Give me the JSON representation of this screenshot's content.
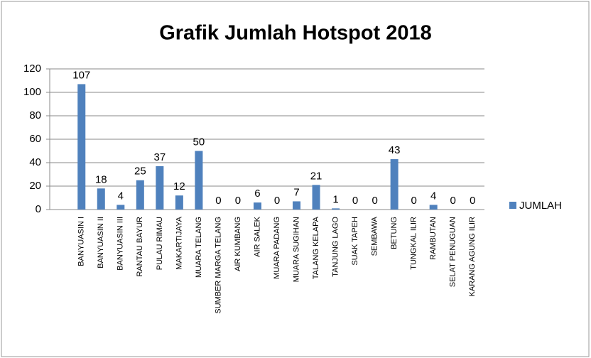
{
  "chart_data": {
    "type": "bar",
    "title": "Grafik Jumlah Hotspot 2018",
    "categories": [
      "BANYUASIN I",
      "BANYUASIN II",
      "BANYUASIN III",
      "RANTAU BAYUR",
      "PULAU RIMAU",
      "MAKARTIJAYA",
      "MUARA TELANG",
      "SUMBER MARGA TELANG",
      "AIR KUMBANG",
      "AIR SALEK",
      "MUARA PADANG",
      "MUARA SUGIHAN",
      "TALANG KELAPA",
      "TANJUNG LAGO",
      "SUAK TAPEH",
      "SEMBAWA",
      "BETUNG",
      "TUNGKAL ILIR",
      "RAMBUTAN",
      "SELAT PENUGUAN",
      "KARANG AGUNG ILIR"
    ],
    "series": [
      {
        "name": "JUMLAH",
        "color": "#4f81bd",
        "values": [
          107,
          18,
          4,
          25,
          37,
          12,
          50,
          0,
          0,
          6,
          0,
          7,
          21,
          1,
          0,
          0,
          43,
          0,
          4,
          0,
          0
        ]
      }
    ],
    "ylim": [
      0,
      120
    ],
    "yticks": [
      0,
      20,
      40,
      60,
      80,
      100,
      120
    ],
    "grid": true,
    "legend": "right"
  }
}
